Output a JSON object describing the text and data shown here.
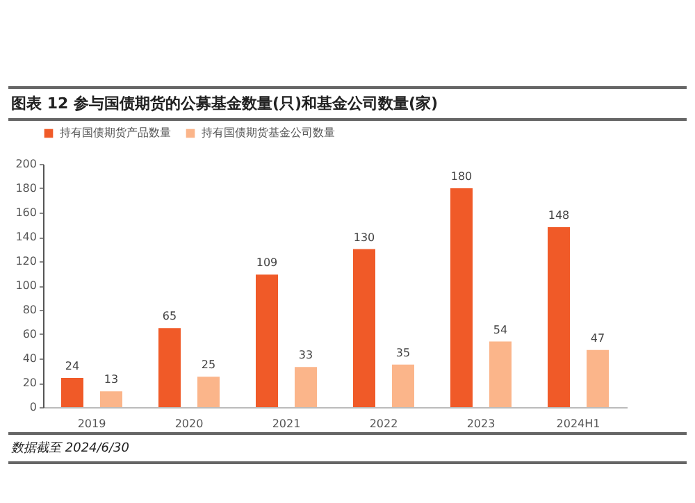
{
  "chart_data": {
    "type": "bar",
    "title": "图表 12   参与国债期货的公募基金数量(只)和基金公司数量(家)",
    "categories": [
      "2019",
      "2020",
      "2021",
      "2022",
      "2023",
      "2024H1"
    ],
    "series": [
      {
        "name": "持有国债期货产品数量",
        "color": "#f05a28",
        "values": [
          24,
          65,
          109,
          130,
          180,
          148
        ]
      },
      {
        "name": "持有国债期货基金公司数量",
        "color": "#fbb58a",
        "values": [
          13,
          25,
          33,
          35,
          54,
          47
        ]
      }
    ],
    "ylim": [
      0,
      200
    ],
    "yticks": [
      0,
      20,
      40,
      60,
      80,
      100,
      120,
      140,
      160,
      180,
      200
    ],
    "data_labels": true,
    "legend": "top",
    "grid": false,
    "annotations": [
      "数据截至 2024/6/30"
    ]
  }
}
